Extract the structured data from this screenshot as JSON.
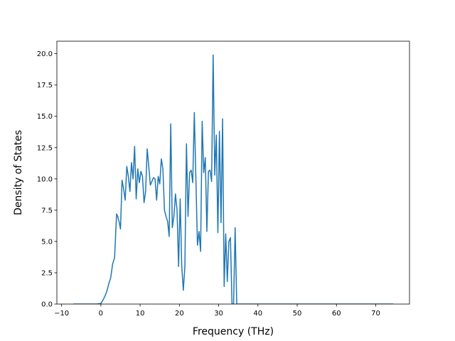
{
  "chart_data": {
    "type": "line",
    "title": "",
    "xlabel": "Frequency (THz)",
    "ylabel": "Density of States",
    "xlim": [
      -11.2,
      78.6
    ],
    "ylim": [
      0,
      21
    ],
    "x_ticks": [
      -10,
      0,
      10,
      20,
      30,
      40,
      50,
      60,
      70
    ],
    "x_tick_labels": [
      "−10",
      "0",
      "10",
      "20",
      "30",
      "40",
      "50",
      "60",
      "70"
    ],
    "y_ticks": [
      0,
      2.5,
      5,
      7.5,
      10,
      12.5,
      15,
      17.5,
      20
    ],
    "y_tick_labels": [
      "0.0",
      "2.5",
      "5.0",
      "7.5",
      "10.0",
      "12.5",
      "15.0",
      "17.5",
      "20.0"
    ],
    "grid": false,
    "legend": "none",
    "line_color": "#1f77b4",
    "series": [
      {
        "x": [
          -7.0,
          -1.0,
          0,
          0.5,
          1.0,
          1.5,
          2.0,
          2.5,
          3.0,
          3.5,
          4.0,
          4.3,
          4.7,
          5.0,
          5.4,
          5.8,
          6.2,
          6.6,
          7.0,
          7.4,
          7.8,
          8.2,
          8.6,
          9.0,
          9.4,
          9.8,
          10.2,
          10.6,
          11.0,
          11.4,
          11.8,
          12.2,
          12.6,
          13.0,
          13.4,
          13.8,
          14.2,
          14.6,
          15.0,
          15.4,
          15.8,
          16.2,
          16.6,
          17.0,
          17.4,
          17.8,
          18.2,
          18.6,
          19.0,
          19.4,
          19.8,
          20.2,
          20.6,
          21.0,
          21.4,
          21.8,
          22.2,
          22.6,
          23.0,
          23.4,
          23.8,
          24.2,
          24.6,
          25.0,
          25.4,
          25.8,
          26.2,
          26.6,
          27.0,
          27.4,
          27.8,
          28.2,
          28.6,
          29.0,
          29.4,
          29.8,
          30.2,
          30.6,
          31.0,
          31.4,
          31.8,
          32.2,
          32.6,
          33.0,
          33.4,
          33.8,
          34.2,
          34.6,
          35.0,
          35.4,
          36.0,
          40.0,
          50.0,
          60.0,
          70.0,
          74.5
        ],
        "y": [
          0,
          0,
          0.05,
          0.3,
          0.6,
          1.0,
          1.6,
          2.1,
          3.2,
          3.7,
          7.2,
          7.0,
          6.5,
          6.0,
          9.9,
          9.2,
          8.3,
          11.0,
          10.2,
          9.0,
          11.3,
          10.0,
          12.6,
          8.4,
          10.8,
          9.7,
          10.6,
          10.2,
          8.1,
          9.0,
          12.4,
          11.0,
          9.5,
          9.8,
          10.1,
          10.0,
          8.3,
          10.2,
          9.6,
          11.6,
          10.8,
          7.5,
          7.0,
          6.6,
          5.4,
          14.4,
          6.1,
          7.0,
          8.8,
          7.5,
          3.0,
          8.4,
          3.0,
          1.1,
          3.0,
          12.8,
          7.0,
          10.5,
          10.7,
          9.7,
          15.3,
          10.0,
          4.7,
          5.8,
          4.2,
          14.6,
          10.5,
          11.7,
          5.8,
          10.6,
          10.7,
          9.8,
          19.9,
          10.3,
          13.5,
          5.7,
          13.8,
          6.5,
          14.8,
          1.4,
          5.6,
          1.8,
          5.0,
          5.3,
          0,
          0,
          6.1,
          0,
          0,
          0,
          0,
          0,
          0,
          0,
          0,
          0
        ]
      }
    ]
  }
}
